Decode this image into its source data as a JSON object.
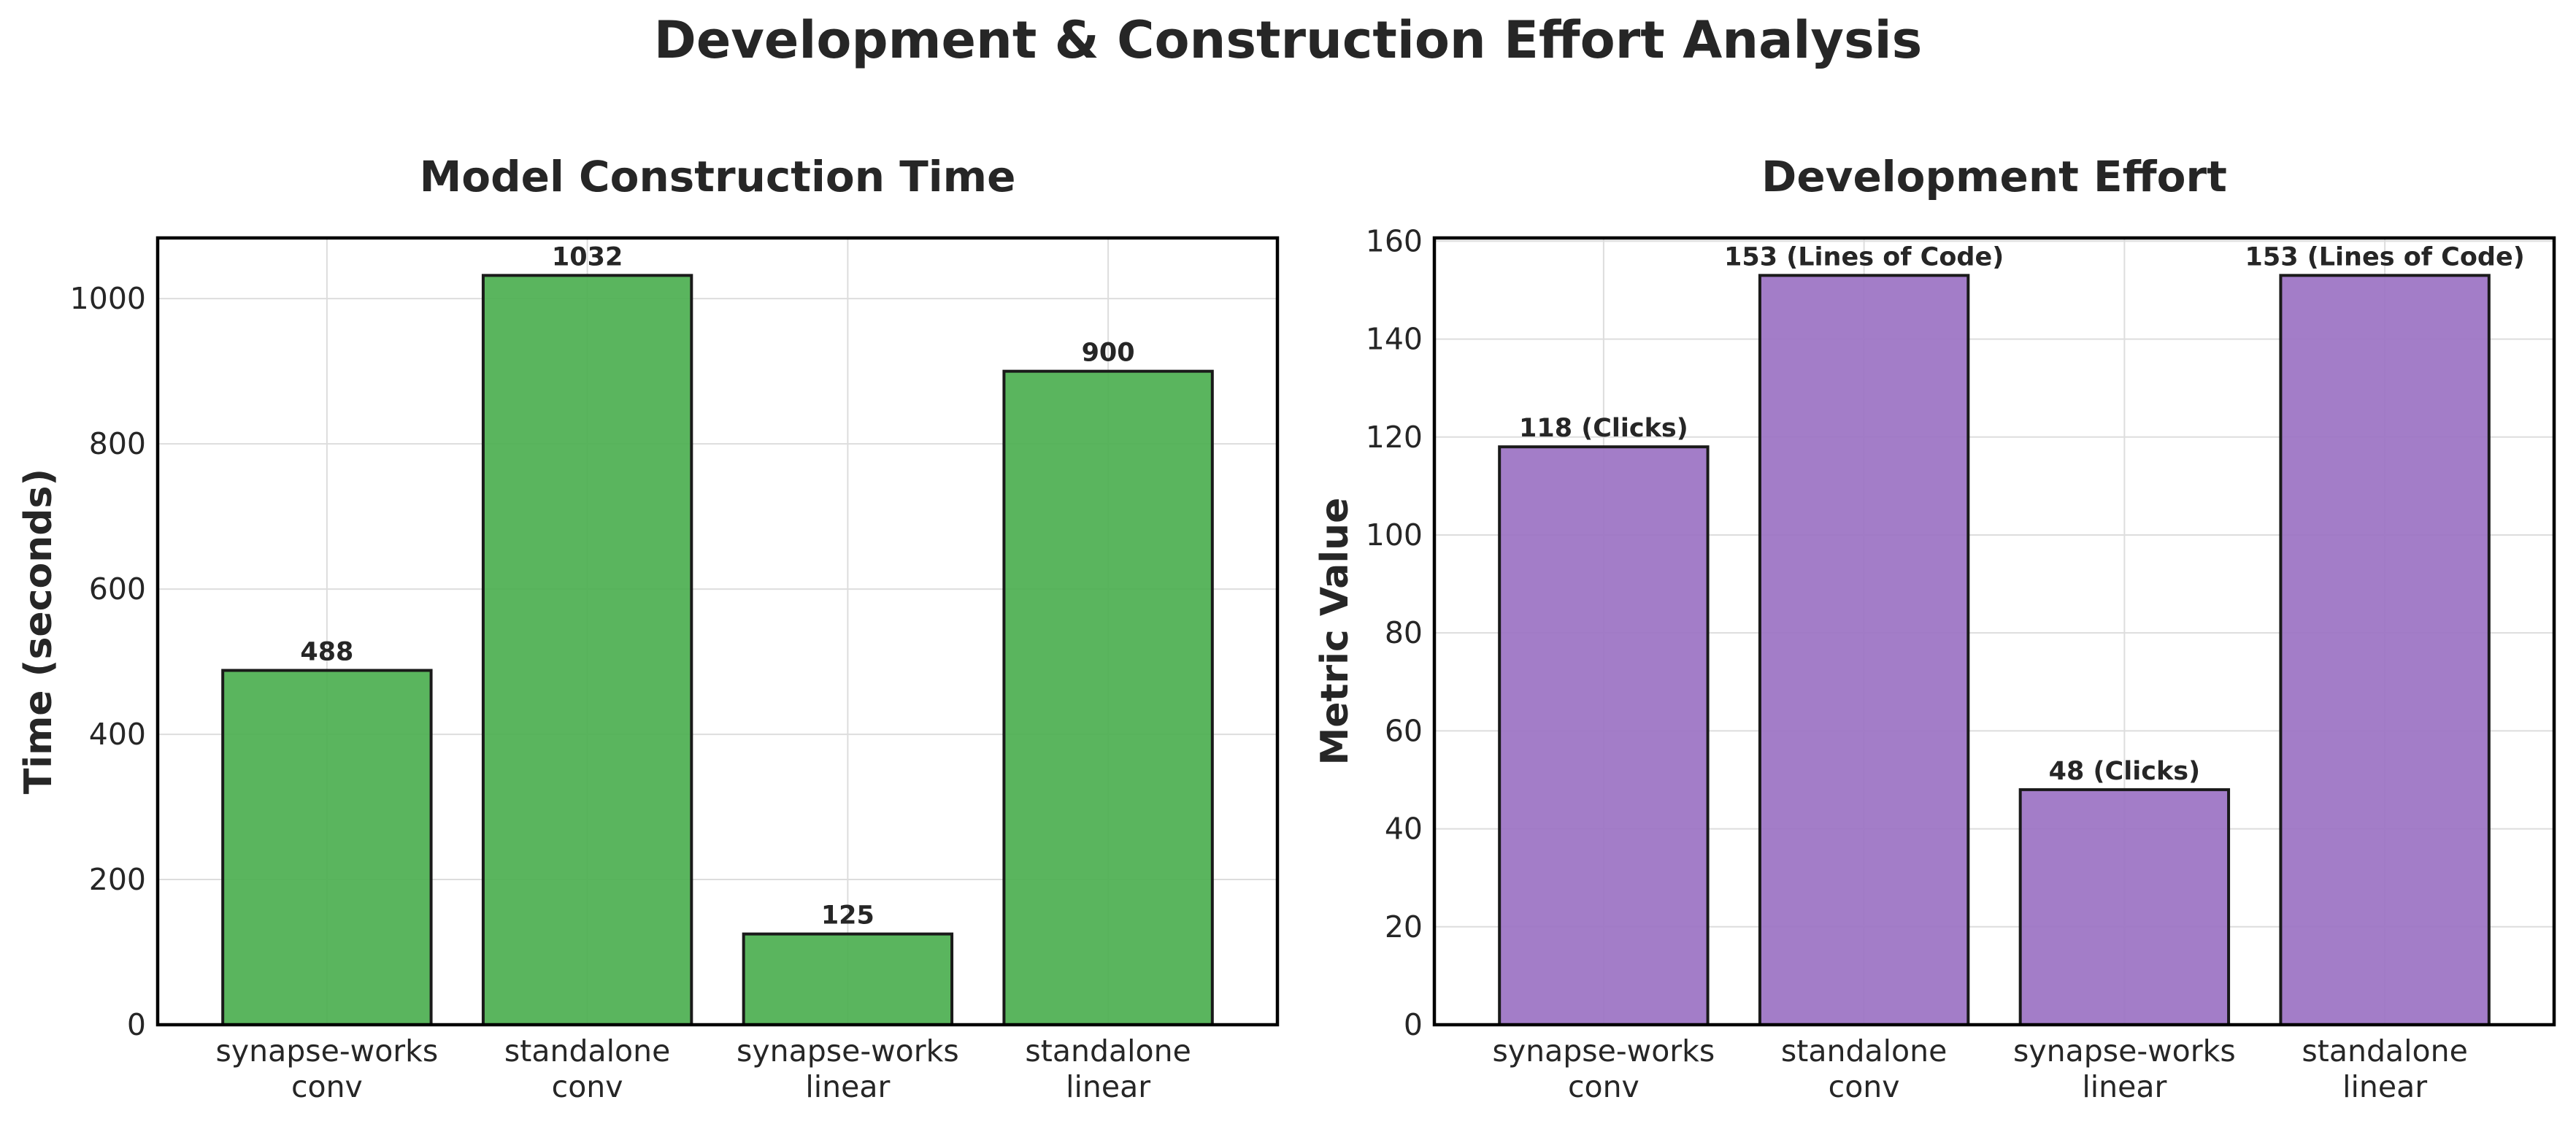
{
  "figure": {
    "title": "Development & Construction Effort Analysis"
  },
  "chart_data": [
    {
      "type": "bar",
      "title": "Model Construction Time",
      "xlabel": "",
      "ylabel": "Time (seconds)",
      "categories": [
        [
          "synapse-works",
          "conv"
        ],
        [
          "standalone",
          "conv"
        ],
        [
          "synapse-works",
          "linear"
        ],
        [
          "standalone",
          "linear"
        ]
      ],
      "values": [
        488,
        1032,
        125,
        900
      ],
      "data_labels": [
        "488",
        "1032",
        "125",
        "900"
      ],
      "ylim": [
        0,
        1083.6
      ],
      "yticks": [
        0,
        200,
        400,
        600,
        800,
        1000
      ],
      "bar_color": "#4caf50",
      "grid": true
    },
    {
      "type": "bar",
      "title": "Development Effort",
      "xlabel": "",
      "ylabel": "Metric Value",
      "categories": [
        [
          "synapse-works",
          "conv"
        ],
        [
          "standalone",
          "conv"
        ],
        [
          "synapse-works",
          "linear"
        ],
        [
          "standalone",
          "linear"
        ]
      ],
      "values": [
        118,
        153,
        48,
        153
      ],
      "data_labels": [
        "118 (Clicks)",
        "153 (Lines of Code)",
        "48 (Clicks)",
        "153 (Lines of Code)"
      ],
      "ylim": [
        0,
        160.65
      ],
      "yticks": [
        0,
        20,
        40,
        60,
        80,
        100,
        120,
        140,
        160
      ],
      "bar_color": "#9b72c3",
      "grid": true
    }
  ]
}
